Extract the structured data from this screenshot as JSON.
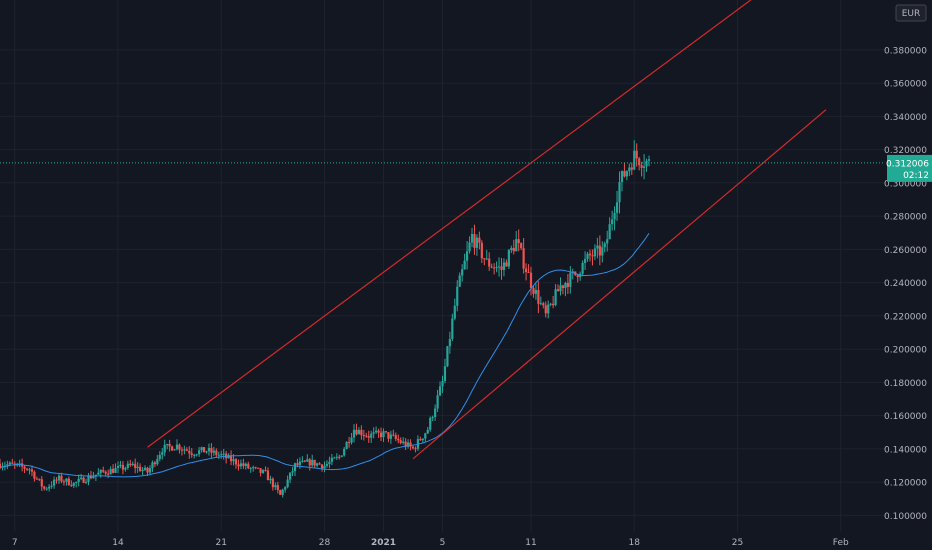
{
  "chart_data": {
    "type": "candlestick",
    "currency": "EUR",
    "y_axis": {
      "min": 0.09,
      "max": 0.41,
      "ticks": [
        "0.100000",
        "0.120000",
        "0.140000",
        "0.160000",
        "0.180000",
        "0.200000",
        "0.220000",
        "0.240000",
        "0.260000",
        "0.280000",
        "0.300000",
        "0.320000",
        "0.340000",
        "0.360000",
        "0.380000"
      ]
    },
    "x_axis": {
      "start": "2020-12-06",
      "end": "2021-02-04",
      "ticks": [
        {
          "label": "7",
          "date": "2020-12-07",
          "bold": false
        },
        {
          "label": "14",
          "date": "2020-12-14",
          "bold": false
        },
        {
          "label": "21",
          "date": "2020-12-21",
          "bold": false
        },
        {
          "label": "28",
          "date": "2020-12-28",
          "bold": false
        },
        {
          "label": "2021",
          "date": "2021-01-01",
          "bold": true
        },
        {
          "label": "5",
          "date": "2021-01-05",
          "bold": false
        },
        {
          "label": "11",
          "date": "2021-01-11",
          "bold": false
        },
        {
          "label": "18",
          "date": "2021-01-18",
          "bold": false
        },
        {
          "label": "25",
          "date": "2021-01-25",
          "bold": false
        },
        {
          "label": "Feb",
          "date": "2021-02-01",
          "bold": false
        }
      ]
    },
    "last_price": {
      "value": 0.312006,
      "label": "0.312006",
      "countdown": "02:12"
    },
    "close_points": [
      [
        "2020-12-06",
        0.131
      ],
      [
        "2020-12-07",
        0.13
      ],
      [
        "2020-12-08",
        0.128
      ],
      [
        "2020-12-09",
        0.116
      ],
      [
        "2020-12-10",
        0.122
      ],
      [
        "2020-12-11",
        0.119
      ],
      [
        "2020-12-12",
        0.123
      ],
      [
        "2020-12-13",
        0.126
      ],
      [
        "2020-12-14",
        0.128
      ],
      [
        "2020-12-15",
        0.13
      ],
      [
        "2020-12-16",
        0.126
      ],
      [
        "2020-12-17",
        0.14
      ],
      [
        "2020-12-18",
        0.142
      ],
      [
        "2020-12-19",
        0.138
      ],
      [
        "2020-12-20",
        0.139
      ],
      [
        "2020-12-21",
        0.136
      ],
      [
        "2020-12-22",
        0.132
      ],
      [
        "2020-12-23",
        0.128
      ],
      [
        "2020-12-24",
        0.125
      ],
      [
        "2020-12-25",
        0.112
      ],
      [
        "2020-12-26",
        0.13
      ],
      [
        "2020-12-27",
        0.132
      ],
      [
        "2020-12-28",
        0.13
      ],
      [
        "2020-12-29",
        0.135
      ],
      [
        "2020-12-30",
        0.152
      ],
      [
        "2020-12-31",
        0.148
      ],
      [
        "2021-01-01",
        0.149
      ],
      [
        "2021-01-02",
        0.145
      ],
      [
        "2021-01-03",
        0.14
      ],
      [
        "2021-01-04",
        0.152
      ],
      [
        "2021-01-05",
        0.18
      ],
      [
        "2021-01-06",
        0.235
      ],
      [
        "2021-01-07",
        0.268
      ],
      [
        "2021-01-08",
        0.252
      ],
      [
        "2021-01-09",
        0.248
      ],
      [
        "2021-01-10",
        0.265
      ],
      [
        "2021-01-11",
        0.24
      ],
      [
        "2021-01-12",
        0.22
      ],
      [
        "2021-01-13",
        0.238
      ],
      [
        "2021-01-14",
        0.245
      ],
      [
        "2021-01-15",
        0.256
      ],
      [
        "2021-01-16",
        0.26
      ],
      [
        "2021-01-17",
        0.3
      ],
      [
        "2021-01-18",
        0.316
      ],
      [
        "2021-01-19",
        0.312
      ]
    ],
    "channel_lines": [
      {
        "name": "upper",
        "color": "#d42a2a",
        "start": [
          "2020-12-16",
          0.141
        ],
        "end": [
          "2021-01-30",
          0.437
        ]
      },
      {
        "name": "lower",
        "color": "#d42a2a",
        "start": [
          "2021-01-03",
          0.134
        ],
        "end": [
          "2021-01-31",
          0.344
        ]
      }
    ],
    "moving_average": {
      "color": "#2f8fe8",
      "period": 7
    },
    "colors": {
      "up": "#26a69a",
      "down": "#ef5350",
      "background": "#131722",
      "axis_text": "#b2b5be",
      "last_price_bg": "#22ab94"
    }
  }
}
